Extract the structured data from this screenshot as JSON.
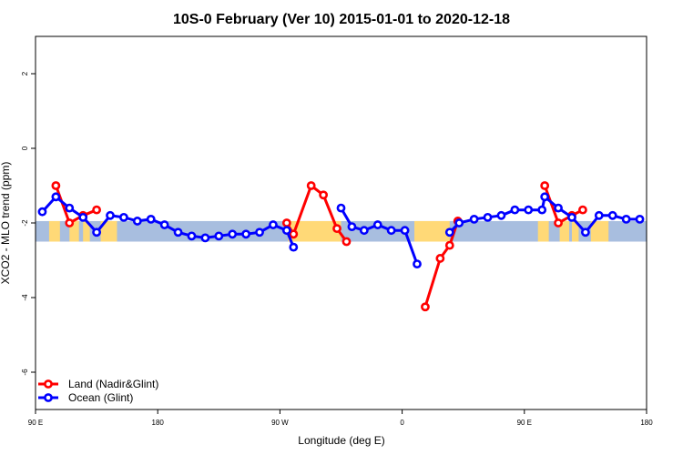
{
  "chart_data": {
    "type": "line",
    "title": "10S-0 February (Ver 10)   2015-01-01 to 2020-12-18",
    "xlabel": "Longitude (deg E)",
    "ylabel": "XCO2 - MLO trend (ppm)",
    "xlim": [
      90,
      540
    ],
    "ylim": [
      -7,
      3
    ],
    "x_ticks": [
      {
        "value": 90,
        "label": "90 E"
      },
      {
        "value": 180,
        "label": "180"
      },
      {
        "value": 270,
        "label": "90 W"
      },
      {
        "value": 360,
        "label": "0"
      },
      {
        "value": 450,
        "label": "90 E"
      },
      {
        "value": 540,
        "label": "180"
      }
    ],
    "y_ticks": [
      {
        "value": 2,
        "label": "2"
      },
      {
        "value": 0,
        "label": "0"
      },
      {
        "value": -2,
        "label": "-2"
      },
      {
        "value": -4,
        "label": "-4"
      },
      {
        "value": -6,
        "label": "-6"
      }
    ],
    "band": {
      "y_top": -1.95,
      "y_bottom": -2.5,
      "ocean_color": "#a8bedf",
      "land_color": "#ffd977"
    },
    "land_regions": [
      [
        100,
        108
      ],
      [
        115,
        122
      ],
      [
        125,
        130
      ],
      [
        138,
        150
      ],
      [
        276,
        315
      ],
      [
        369,
        395
      ],
      [
        460,
        468
      ],
      [
        476,
        483
      ],
      [
        485,
        490
      ],
      [
        499,
        512
      ]
    ],
    "legend": {
      "position": "bottom-left"
    },
    "series": [
      {
        "name": "Land (Nadir&Glint)",
        "color": "#ff0000",
        "segments": [
          [
            [
              105,
              -1.0
            ],
            [
              115,
              -2.0
            ],
            [
              125,
              -1.8
            ],
            [
              135,
              -1.65
            ]
          ],
          [
            [
              275,
              -2.0
            ],
            [
              280,
              -2.3
            ],
            [
              293,
              -1.0
            ],
            [
              302,
              -1.25
            ],
            [
              312,
              -2.15
            ],
            [
              319,
              -2.5
            ]
          ],
          [
            [
              377,
              -4.25
            ],
            [
              388,
              -2.95
            ],
            [
              395,
              -2.6
            ],
            [
              401,
              -1.95
            ]
          ],
          [
            [
              465,
              -1.0
            ],
            [
              475,
              -2.0
            ],
            [
              485,
              -1.8
            ],
            [
              493,
              -1.65
            ]
          ]
        ]
      },
      {
        "name": "Ocean (Glint)",
        "color": "#0000ff",
        "segments": [
          [
            [
              95,
              -1.7
            ],
            [
              105,
              -1.3
            ],
            [
              115,
              -1.6
            ],
            [
              125,
              -1.85
            ],
            [
              135,
              -2.25
            ],
            [
              145,
              -1.8
            ],
            [
              155,
              -1.85
            ],
            [
              165,
              -1.95
            ],
            [
              175,
              -1.9
            ],
            [
              185,
              -2.05
            ],
            [
              195,
              -2.25
            ],
            [
              205,
              -2.35
            ],
            [
              215,
              -2.4
            ],
            [
              225,
              -2.35
            ],
            [
              235,
              -2.3
            ],
            [
              245,
              -2.3
            ],
            [
              255,
              -2.25
            ],
            [
              265,
              -2.05
            ],
            [
              275,
              -2.2
            ],
            [
              280,
              -2.65
            ]
          ],
          [
            [
              315,
              -1.6
            ],
            [
              323,
              -2.1
            ],
            [
              332,
              -2.2
            ],
            [
              342,
              -2.05
            ],
            [
              352,
              -2.2
            ],
            [
              362,
              -2.2
            ],
            [
              371,
              -3.1
            ]
          ],
          [
            [
              395,
              -2.25
            ],
            [
              402,
              -2.0
            ],
            [
              413,
              -1.9
            ],
            [
              423,
              -1.85
            ],
            [
              433,
              -1.8
            ],
            [
              443,
              -1.65
            ],
            [
              453,
              -1.65
            ],
            [
              463,
              -1.65
            ],
            [
              465,
              -1.3
            ],
            [
              475,
              -1.6
            ],
            [
              485,
              -1.85
            ],
            [
              495,
              -2.25
            ],
            [
              505,
              -1.8
            ],
            [
              515,
              -1.8
            ],
            [
              525,
              -1.9
            ],
            [
              535,
              -1.9
            ]
          ]
        ]
      }
    ]
  }
}
